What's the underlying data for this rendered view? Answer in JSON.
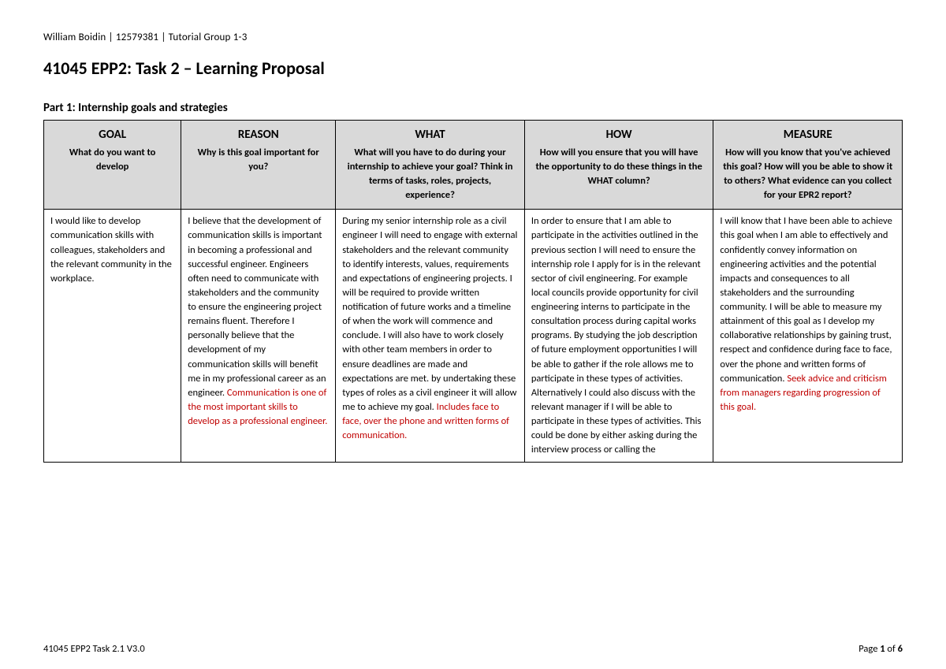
{
  "header": "William Boidin | 12579381 | Tutorial Group 1-3",
  "title": "41045 EPP2: Task 2 – Learning Proposal",
  "part_heading": "Part 1: Internship goals and strategies",
  "columns": [
    {
      "title": "GOAL",
      "sub": "What do you want to develop"
    },
    {
      "title": "REASON",
      "sub": "Why is this goal important for you?"
    },
    {
      "title": "WHAT",
      "sub": "What will you have to do during your internship to achieve your goal? Think in terms of tasks, roles, projects, experience?"
    },
    {
      "title": "HOW",
      "sub": "How will you ensure that you will have the opportunity to do these things in the WHAT column?"
    },
    {
      "title": "MEASURE",
      "sub": "How will you know that you've achieved this goal? How will you be able to show it to others? What evidence can you collect for your EPR2 report?"
    }
  ],
  "row": {
    "goal": "I would like to develop communication skills with colleagues, stakeholders and the relevant community in the workplace.",
    "reason_main": "I believe that the development of communication skills is important in becoming a professional and successful engineer. Engineers often need to communicate with stakeholders and the community to ensure the engineering project remains fluent. Therefore I personally believe that the development of my communication skills will benefit me in my professional career as an engineer.",
    "reason_red": "Communication is one of the most important skills to develop as a professional engineer.",
    "what_main": "During my senior internship role as a civil engineer I will need to engage with external stakeholders and the relevant community to identify interests, values, requirements and expectations of engineering projects. I will be required to provide written notification of future works and a timeline of when the work will commence and conclude. I will also have to work closely with other team members in order to ensure deadlines are made and expectations are met. by undertaking these types of roles as a civil engineer it will allow me to achieve my goal.",
    "what_red": "Includes face to face, over the phone and written forms of communication.",
    "how": "In order to ensure that I am able to participate in the activities outlined in the previous section I will need to ensure the internship role I apply for is in the relevant sector of civil engineering. For example local councils provide opportunity for civil engineering interns to participate in the consultation process during capital works programs. By studying the job description of future employment opportunities I will be able to gather if the role allows me to participate in these types of activities. Alternatively I could also discuss with the relevant manager if I will be able to participate in these types of activities. This could be done by either asking during the interview process or calling the",
    "measure_main": "I will know that I have been able to achieve this goal when I am able to effectively and confidently convey information on engineering activities and the potential impacts and consequences to all stakeholders and the surrounding community. I will be able to measure my attainment of this goal as I develop my collaborative relationships by gaining trust, respect and confidence during face to face, over the phone and written forms of communication.",
    "measure_red": "Seek advice and criticism from managers regarding progression of this goal."
  },
  "footer_left": "41045 EPP2 Task 2.1 V3.0",
  "footer_page_prefix": "Page ",
  "footer_page_current": "1",
  "footer_page_of": " of ",
  "footer_page_total": "6"
}
